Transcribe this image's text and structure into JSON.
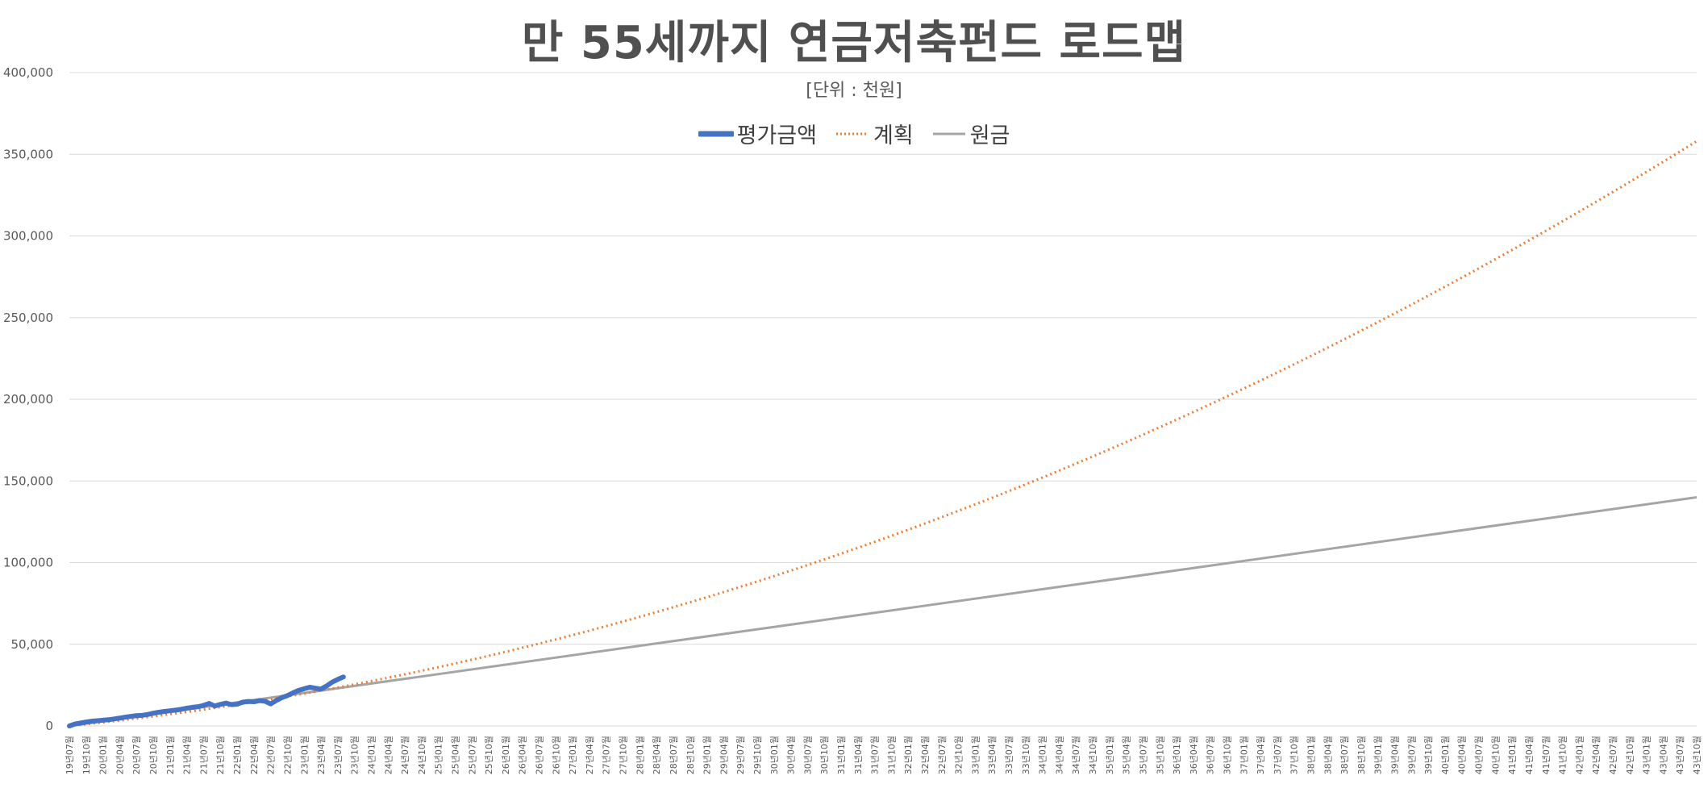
{
  "chart_data": {
    "type": "line",
    "title": "만 55세까지 연금저축펀드 로드맵",
    "subtitle": "[단위 : 천원]",
    "xlabel": "",
    "ylabel": "",
    "ylim": [
      0,
      400000
    ],
    "yticks": [
      0,
      50000,
      100000,
      150000,
      200000,
      250000,
      300000,
      350000,
      400000
    ],
    "grid": true,
    "legend_position": "top",
    "x_start": {
      "year": 2019,
      "month": 7
    },
    "x_end": {
      "year": 2043,
      "month": 10
    },
    "x_label_format": "{yy}년{mm}월",
    "series": [
      {
        "name": "평가금액",
        "style": "solid-thick",
        "color": "#4472c4",
        "values": [
          0,
          1200,
          1800,
          2400,
          2900,
          3200,
          3500,
          3800,
          4300,
          4800,
          5400,
          5900,
          6300,
          6500,
          7000,
          7800,
          8400,
          8900,
          9300,
          9700,
          10200,
          10900,
          11400,
          11800,
          12600,
          13800,
          12200,
          13200,
          14000,
          13000,
          13300,
          14600,
          15000,
          14800,
          15500,
          15100,
          13500,
          15600,
          17300,
          18600,
          20300,
          21800,
          22800,
          23700,
          23100,
          22600,
          24500,
          26800,
          28500,
          30000
        ]
      },
      {
        "name": "계획",
        "style": "dotted",
        "color": "#ed7d31",
        "values": [
          0,
          358000
        ]
      },
      {
        "name": "원금",
        "style": "solid",
        "color": "#a5a5a5",
        "values": [
          0,
          140000
        ]
      }
    ]
  }
}
